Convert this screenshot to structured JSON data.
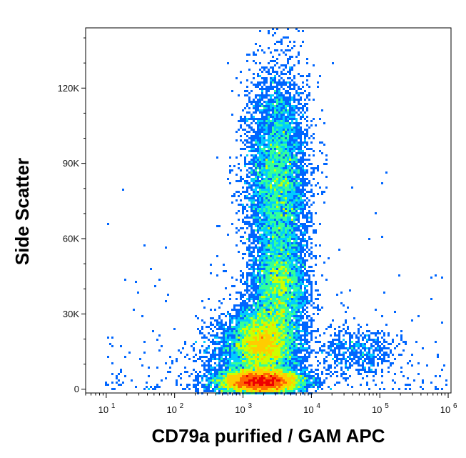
{
  "chart_data": {
    "type": "scatter",
    "title": "",
    "xlabel": "CD79a purified / GAM APC",
    "ylabel": "Side Scatter",
    "x_scale": "log",
    "xlim": [
      5,
      1100000
    ],
    "ylim": [
      -1500,
      144000
    ],
    "x_ticks": [
      {
        "value": 10,
        "base": "10",
        "exp": "1"
      },
      {
        "value": 100,
        "base": "10",
        "exp": "2"
      },
      {
        "value": 1000,
        "base": "10",
        "exp": "3"
      },
      {
        "value": 10000,
        "base": "10",
        "exp": "4"
      },
      {
        "value": 100000,
        "base": "10",
        "exp": "5"
      },
      {
        "value": 1000000,
        "base": "10",
        "exp": "6"
      }
    ],
    "y_ticks": [
      {
        "value": 0,
        "label": "0"
      },
      {
        "value": 30000,
        "label": "30K"
      },
      {
        "value": 60000,
        "label": "60K"
      },
      {
        "value": 90000,
        "label": "90K"
      },
      {
        "value": 120000,
        "label": "120K"
      }
    ],
    "grid": false,
    "legend": "none",
    "colormap": [
      "#0000cc",
      "#0066ff",
      "#00ccff",
      "#33ff99",
      "#ccff00",
      "#ffcc00",
      "#ff6600",
      "#ee0000"
    ],
    "populations": [
      {
        "x_center": 3200,
        "y_center": 82000,
        "x_spread_decades": 0.22,
        "y_spread": 22000,
        "density": "high"
      },
      {
        "x_center": 2000,
        "y_center": 18000,
        "x_spread_decades": 0.25,
        "y_spread": 7000,
        "density": "high"
      },
      {
        "x_center": 1800,
        "y_center": 3000,
        "x_spread_decades": 0.3,
        "y_spread": 2500,
        "density": "very high"
      },
      {
        "x_center": 3500,
        "y_center": 40000,
        "x_spread_decades": 0.2,
        "y_spread": 10000,
        "density": "medium"
      },
      {
        "x_center": 45000,
        "y_center": 15000,
        "x_spread_decades": 0.3,
        "y_spread": 5000,
        "density": "low"
      },
      {
        "x_center": 700,
        "y_center": 12000,
        "x_spread_decades": 0.3,
        "y_spread": 8000,
        "density": "low"
      }
    ]
  }
}
